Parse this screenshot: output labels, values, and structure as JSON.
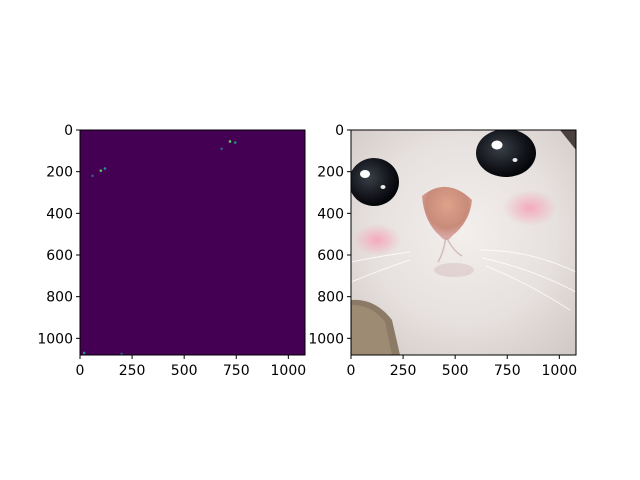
{
  "figure": {
    "background": "#ffffff"
  },
  "chart_data": [
    {
      "type": "heatmap",
      "description": "",
      "colormap": "viridis",
      "background_value_color": "#440154",
      "xlim": [
        0,
        1080
      ],
      "ylim": [
        1080,
        0
      ],
      "xticks": [
        0,
        250,
        500,
        750,
        1000
      ],
      "yticks": [
        0,
        200,
        400,
        600,
        800,
        1000
      ],
      "xtick_labels": [
        "0",
        "250",
        "500",
        "750",
        "1000"
      ],
      "ytick_labels": [
        "0",
        "200",
        "400",
        "600",
        "800",
        "1000"
      ],
      "grid": false,
      "hot_spots": [
        {
          "x": 100,
          "y": 195,
          "color": "#5ec962"
        },
        {
          "x": 120,
          "y": 185,
          "color": "#21918c"
        },
        {
          "x": 60,
          "y": 220,
          "color": "#3b528b"
        },
        {
          "x": 720,
          "y": 55,
          "color": "#5ec962"
        },
        {
          "x": 745,
          "y": 60,
          "color": "#21918c"
        },
        {
          "x": 680,
          "y": 90,
          "color": "#3b528b"
        },
        {
          "x": 20,
          "y": 1070,
          "color": "#21918c"
        },
        {
          "x": 200,
          "y": 1075,
          "color": "#3b528b"
        }
      ]
    },
    {
      "type": "image",
      "description": "",
      "xlim": [
        0,
        1080
      ],
      "ylim": [
        1080,
        0
      ],
      "xticks": [
        0,
        250,
        500,
        750,
        1000
      ],
      "yticks": [
        0,
        200,
        400,
        600,
        800,
        1000
      ],
      "xtick_labels": [
        "0",
        "250",
        "500",
        "750",
        "1000"
      ],
      "ytick_labels": [
        "0",
        "200",
        "400",
        "600",
        "800",
        "1000"
      ],
      "grid": false
    }
  ]
}
